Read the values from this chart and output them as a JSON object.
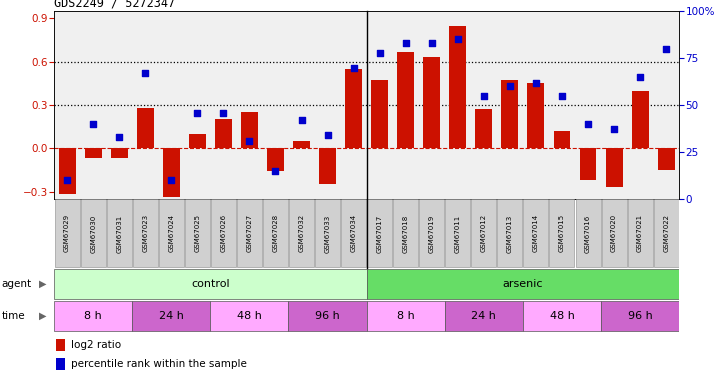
{
  "title": "GDS2249 / 5272347",
  "samples": [
    "GSM67029",
    "GSM67030",
    "GSM67031",
    "GSM67023",
    "GSM67024",
    "GSM67025",
    "GSM67026",
    "GSM67027",
    "GSM67028",
    "GSM67032",
    "GSM67033",
    "GSM67034",
    "GSM67017",
    "GSM67018",
    "GSM67019",
    "GSM67011",
    "GSM67012",
    "GSM67013",
    "GSM67014",
    "GSM67015",
    "GSM67016",
    "GSM67020",
    "GSM67021",
    "GSM67022"
  ],
  "log2_ratio": [
    -0.32,
    -0.07,
    -0.07,
    0.28,
    -0.34,
    0.1,
    0.2,
    0.25,
    -0.16,
    0.05,
    -0.25,
    0.55,
    0.47,
    0.67,
    0.63,
    0.85,
    0.27,
    0.47,
    0.45,
    0.12,
    -0.22,
    -0.27,
    0.4,
    -0.15
  ],
  "percentile": [
    10,
    40,
    33,
    67,
    10,
    46,
    46,
    31,
    15,
    42,
    34,
    70,
    78,
    83,
    83,
    85,
    55,
    60,
    62,
    55,
    40,
    37,
    65,
    80
  ],
  "agent_groups": [
    {
      "label": "control",
      "start": 0,
      "end": 12,
      "color": "#ccffcc"
    },
    {
      "label": "arsenic",
      "start": 12,
      "end": 24,
      "color": "#66dd66"
    }
  ],
  "time_groups": [
    {
      "label": "8 h",
      "start": 0,
      "end": 3,
      "color": "#ffaaff"
    },
    {
      "label": "24 h",
      "start": 3,
      "end": 6,
      "color": "#cc66cc"
    },
    {
      "label": "48 h",
      "start": 6,
      "end": 9,
      "color": "#ffaaff"
    },
    {
      "label": "96 h",
      "start": 9,
      "end": 12,
      "color": "#cc66cc"
    },
    {
      "label": "8 h",
      "start": 12,
      "end": 15,
      "color": "#ffaaff"
    },
    {
      "label": "24 h",
      "start": 15,
      "end": 18,
      "color": "#cc66cc"
    },
    {
      "label": "48 h",
      "start": 18,
      "end": 21,
      "color": "#ffaaff"
    },
    {
      "label": "96 h",
      "start": 21,
      "end": 24,
      "color": "#cc66cc"
    }
  ],
  "bar_color": "#cc1100",
  "dot_color": "#0000cc",
  "ylim_left": [
    -0.35,
    0.95
  ],
  "ylim_right": [
    0,
    100
  ],
  "yticks_left": [
    -0.3,
    0.0,
    0.3,
    0.6,
    0.9
  ],
  "yticks_right": [
    0,
    25,
    50,
    75,
    100
  ],
  "hlines": [
    0.3,
    0.6
  ],
  "hline_zero_color": "#cc1100",
  "bg_color": "#f0f0f0",
  "gsm_bg": "#d0d0d0"
}
